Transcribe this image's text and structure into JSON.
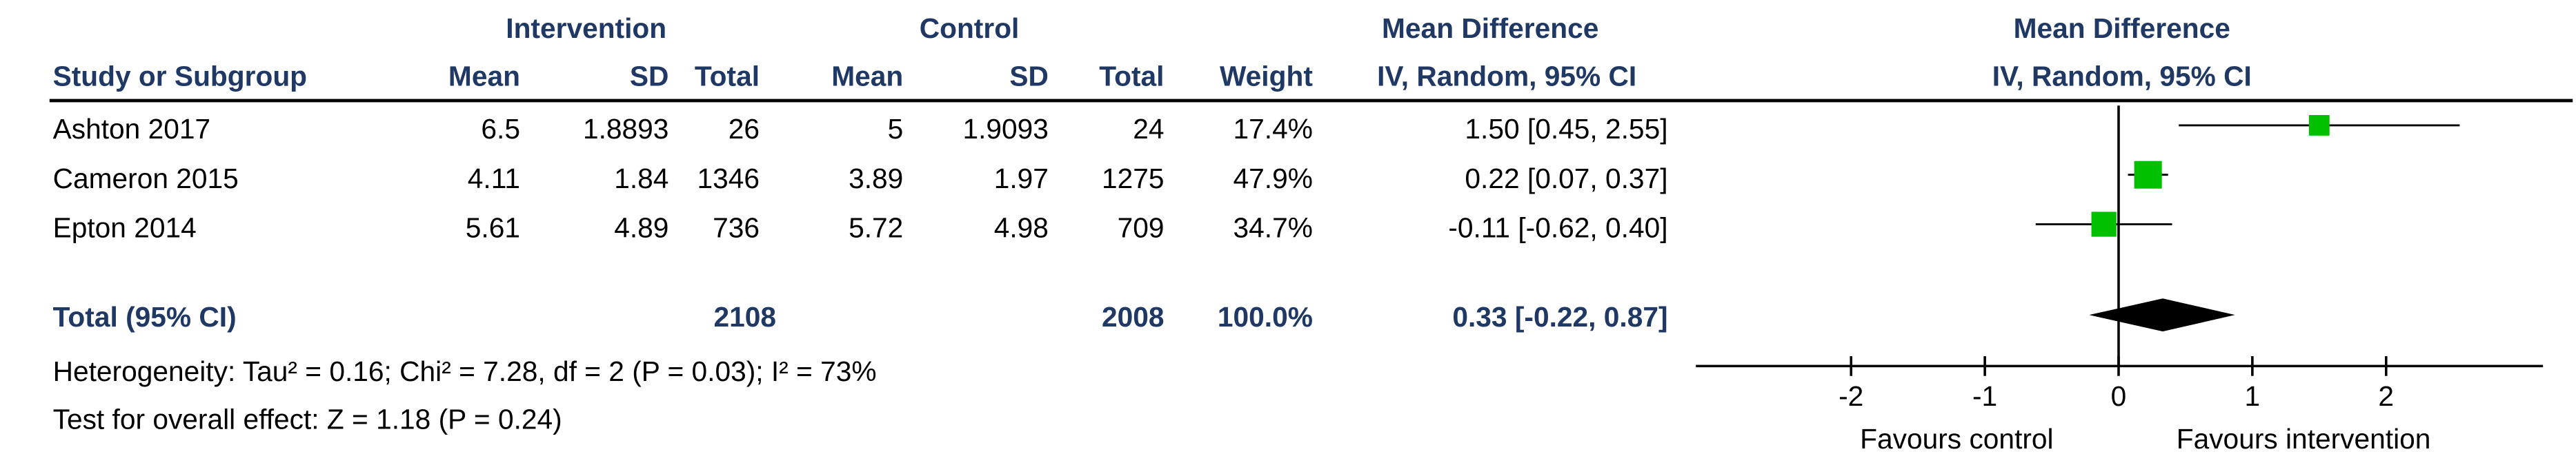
{
  "header": {
    "group_intervention": "Intervention",
    "group_control": "Control",
    "group_md": "Mean Difference",
    "group_md_plot": "Mean Difference",
    "col_study": "Study or Subgroup",
    "col_i_mean": "Mean",
    "col_i_sd": "SD",
    "col_i_total": "Total",
    "col_c_mean": "Mean",
    "col_c_sd": "SD",
    "col_c_total": "Total",
    "col_weight": "Weight",
    "col_ci": "IV, Random, 95% CI",
    "col_ci_plot": "IV, Random, 95% CI"
  },
  "studies": [
    {
      "name": "Ashton 2017",
      "i_mean": "6.5",
      "i_sd": "1.8893",
      "i_total": "26",
      "c_mean": "5",
      "c_sd": "1.9093",
      "c_total": "24",
      "weight": "17.4%",
      "ci_text": "1.50 [0.45, 2.55]"
    },
    {
      "name": "Cameron 2015",
      "i_mean": "4.11",
      "i_sd": "1.84",
      "i_total": "1346",
      "c_mean": "3.89",
      "c_sd": "1.97",
      "c_total": "1275",
      "weight": "47.9%",
      "ci_text": "0.22 [0.07, 0.37]"
    },
    {
      "name": "Epton 2014",
      "i_mean": "5.61",
      "i_sd": "4.89",
      "i_total": "736",
      "c_mean": "5.72",
      "c_sd": "4.98",
      "c_total": "709",
      "weight": "34.7%",
      "ci_text": "-0.11 [-0.62, 0.40]"
    }
  ],
  "total": {
    "label": "Total (95% CI)",
    "i_total": "2108",
    "c_total": "2008",
    "weight": "100.0%",
    "ci_text": "0.33 [-0.22, 0.87]"
  },
  "heterogeneity": "Heterogeneity: Tau² = 0.16; Chi² = 7.28, df = 2 (P = 0.03); I² = 73%",
  "overall_effect": "Test for overall effect: Z = 1.18 (P = 0.24)",
  "axis": {
    "favours_left": "Favours control",
    "favours_right": "Favours intervention"
  },
  "colors": {
    "marker": "#00c000",
    "header_text": "#1f3864",
    "text": "#000000"
  },
  "chart_data": {
    "type": "forest",
    "title": "",
    "xlabel": "",
    "ylabel": "",
    "xlim": [
      -3.2,
      3.2
    ],
    "ticks": [
      -2,
      -1,
      0,
      1,
      2
    ],
    "null_line": 0,
    "studies": [
      {
        "name": "Ashton 2017",
        "estimate": 1.5,
        "ci_low": 0.45,
        "ci_high": 2.55,
        "weight": 17.4
      },
      {
        "name": "Cameron 2015",
        "estimate": 0.22,
        "ci_low": 0.07,
        "ci_high": 0.37,
        "weight": 47.9
      },
      {
        "name": "Epton 2014",
        "estimate": -0.11,
        "ci_low": -0.62,
        "ci_high": 0.4,
        "weight": 34.7
      }
    ],
    "pooled": {
      "estimate": 0.33,
      "ci_low": -0.22,
      "ci_high": 0.87
    },
    "grid": false,
    "legend": "none"
  }
}
